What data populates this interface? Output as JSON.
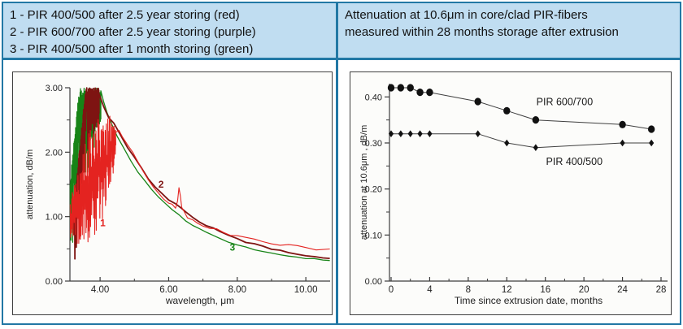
{
  "colors": {
    "frame_border": "#2278a5",
    "header_bg": "#c0ddf1",
    "panel_bg": "#fcfcfa",
    "axis": "#3c3c3c",
    "tick_text": "#222222",
    "marker": "#111111",
    "connect_line": "#3f3f3f",
    "series_red": "#e42320",
    "series_darkred": "#7e1412",
    "series_green": "#178417"
  },
  "legend_panel": {
    "lines": [
      "1 - PIR 400/500 after 2.5 year storing (red)",
      "2 - PIR 600/700 after 2.5 year storing (purple)",
      "3 - PIR 400/500 after 1 month storing (green)"
    ]
  },
  "title_panel": {
    "lines": [
      "Attenuation at 10.6μm in core/clad PIR-fibers",
      "measured within 28 months storage after extrusion"
    ]
  },
  "chart_data": [
    {
      "type": "line",
      "title": "",
      "xlabel": "wavelength, μm",
      "ylabel": "attenuation, dB/m",
      "xlim": [
        3.12,
        10.75
      ],
      "ylim": [
        0,
        3.0
      ],
      "grid": false,
      "xticks_major": [
        {
          "v": 4,
          "label": "4.00"
        },
        {
          "v": 6,
          "label": "6.00"
        },
        {
          "v": 8,
          "label": "8.00"
        },
        {
          "v": 10,
          "label": "10.00"
        }
      ],
      "xticks_minor": [
        5,
        7,
        9
      ],
      "yticks_major": [
        {
          "v": 0,
          "label": "0.00"
        },
        {
          "v": 1,
          "label": "1.00"
        },
        {
          "v": 2,
          "label": "2.00"
        },
        {
          "v": 3,
          "label": "3.00"
        }
      ],
      "yticks_minor": [
        0.5,
        1.5,
        2.5
      ],
      "series": [
        {
          "name": "PIR 400/500 after 1 month storing",
          "curve_label": "3",
          "label_xy": [
            7.78,
            0.47
          ],
          "color": "#178417",
          "width": 1.3,
          "seed": 11,
          "jitter": 0.02,
          "noise": {
            "kind": "banded",
            "x0": 3.13,
            "x1": 4.02,
            "step": 0.013,
            "top0": 1.6,
            "rise": 5.5,
            "cap": 3.0,
            "fall_after": 3.96,
            "fall_rate": 1.2,
            "depth_min": 0.3,
            "depth_max": 1.55,
            "taper_x": 3.55,
            "taper_k": 1.5
          },
          "points": [
            [
              4.02,
              2.95
            ],
            [
              4.1,
              2.8
            ],
            [
              4.2,
              2.62
            ],
            [
              4.35,
              2.42
            ],
            [
              4.5,
              2.25
            ],
            [
              4.7,
              2.05
            ],
            [
              4.9,
              1.87
            ],
            [
              5.1,
              1.7
            ],
            [
              5.3,
              1.55
            ],
            [
              5.5,
              1.42
            ],
            [
              5.7,
              1.3
            ],
            [
              5.9,
              1.2
            ],
            [
              6.1,
              1.1
            ],
            [
              6.3,
              1.02
            ],
            [
              6.5,
              0.94
            ],
            [
              6.7,
              0.87
            ],
            [
              6.9,
              0.81
            ],
            [
              7.1,
              0.76
            ],
            [
              7.3,
              0.71
            ],
            [
              7.5,
              0.66
            ],
            [
              7.75,
              0.61
            ],
            [
              8.0,
              0.57
            ],
            [
              8.25,
              0.53
            ],
            [
              8.5,
              0.49
            ],
            [
              8.75,
              0.46
            ],
            [
              9.0,
              0.43
            ],
            [
              9.25,
              0.41
            ],
            [
              9.5,
              0.39
            ],
            [
              9.75,
              0.37
            ],
            [
              10.0,
              0.35
            ],
            [
              10.25,
              0.34
            ],
            [
              10.5,
              0.33
            ],
            [
              10.7,
              0.32
            ]
          ]
        },
        {
          "name": "PIR 600/700 after 2.5 year storing",
          "curve_label": "2",
          "label_xy": [
            5.7,
            1.45
          ],
          "color": "#7e1412",
          "width": 1.8,
          "seed": 23,
          "jitter": 0.03,
          "noise": {
            "kind": "banded",
            "x0": 3.22,
            "x1": 3.97,
            "step": 0.013,
            "top0": 1.1,
            "rise": 5.3,
            "cap": 3.0,
            "fall_after": 3.95,
            "fall_rate": 3.0,
            "depth_min": 0.2,
            "depth_max": 1.0,
            "taper_x": 3.65,
            "taper_k": 1.4
          },
          "points": [
            [
              3.97,
              2.92
            ],
            [
              4.1,
              2.72
            ],
            [
              4.25,
              2.55
            ],
            [
              4.4,
              2.44
            ],
            [
              4.6,
              2.26
            ],
            [
              4.8,
              2.08
            ],
            [
              5.0,
              1.92
            ],
            [
              5.2,
              1.75
            ],
            [
              5.4,
              1.6
            ],
            [
              5.6,
              1.47
            ],
            [
              5.8,
              1.36
            ],
            [
              6.0,
              1.27
            ],
            [
              6.2,
              1.2
            ],
            [
              6.35,
              1.14
            ],
            [
              6.5,
              1.07
            ],
            [
              6.7,
              0.99
            ],
            [
              6.9,
              0.93
            ],
            [
              7.1,
              0.87
            ],
            [
              7.3,
              0.82
            ],
            [
              7.5,
              0.77
            ],
            [
              7.75,
              0.71
            ],
            [
              8.0,
              0.66
            ],
            [
              8.25,
              0.61
            ],
            [
              8.5,
              0.57
            ],
            [
              8.75,
              0.53
            ],
            [
              9.0,
              0.5
            ],
            [
              9.25,
              0.47
            ],
            [
              9.5,
              0.44
            ],
            [
              9.75,
              0.42
            ],
            [
              10.0,
              0.4
            ],
            [
              10.25,
              0.38
            ],
            [
              10.5,
              0.36
            ],
            [
              10.7,
              0.35
            ]
          ]
        },
        {
          "name": "PIR 400/500 after 2.5 year storing",
          "curve_label": "1",
          "label_xy": [
            4.0,
            0.85
          ],
          "color": "#e42320",
          "width": 1.1,
          "seed": 5,
          "jitter": 0.045,
          "noise": {
            "kind": "swing",
            "x0": 3.13,
            "x1": 4.45,
            "step": 0.015,
            "c0": 0.95,
            "slope": 0.9,
            "cmax": 2.25,
            "amp_start": 0.35,
            "amp_rise": 1.0,
            "amp0": 0.9,
            "amp_hold": 4.0,
            "amp_fall": 1.1,
            "amp_min": 0.18,
            "clip_lo": 0.55,
            "clip_hi": 2.6
          },
          "points": [
            [
              4.45,
              2.3
            ],
            [
              4.55,
              2.34
            ],
            [
              4.65,
              2.24
            ],
            [
              4.8,
              2.12
            ],
            [
              4.95,
              2.0
            ],
            [
              5.1,
              1.86
            ],
            [
              5.25,
              1.72
            ],
            [
              5.4,
              1.58
            ],
            [
              5.55,
              1.46
            ],
            [
              5.7,
              1.36
            ],
            [
              5.85,
              1.28
            ],
            [
              6.0,
              1.22
            ],
            [
              6.1,
              1.18
            ],
            [
              6.2,
              1.15
            ],
            [
              6.26,
              1.25
            ],
            [
              6.3,
              1.44
            ],
            [
              6.34,
              1.34
            ],
            [
              6.38,
              1.16
            ],
            [
              6.45,
              1.06
            ],
            [
              6.55,
              1.0
            ],
            [
              6.7,
              0.95
            ],
            [
              6.85,
              0.9
            ],
            [
              7.0,
              0.87
            ],
            [
              7.2,
              0.83
            ],
            [
              7.4,
              0.79
            ],
            [
              7.6,
              0.76
            ],
            [
              7.8,
              0.73
            ],
            [
              8.0,
              0.7
            ],
            [
              8.25,
              0.67
            ],
            [
              8.5,
              0.64
            ],
            [
              8.75,
              0.61
            ],
            [
              9.0,
              0.59
            ],
            [
              9.25,
              0.57
            ],
            [
              9.5,
              0.55
            ],
            [
              9.75,
              0.53
            ],
            [
              10.0,
              0.52
            ],
            [
              10.3,
              0.5
            ],
            [
              10.7,
              0.49
            ]
          ]
        }
      ]
    },
    {
      "type": "scatter",
      "title": "",
      "xlabel": "Time since extrusion date, months",
      "ylabel": "attenuation at 10.6μm , dB/m",
      "xlim": [
        0,
        28
      ],
      "ylim": [
        0,
        0.43
      ],
      "grid": false,
      "xticks_major": [
        {
          "v": 0,
          "label": "0"
        },
        {
          "v": 4,
          "label": "4"
        },
        {
          "v": 8,
          "label": "8"
        },
        {
          "v": 12,
          "label": "12"
        },
        {
          "v": 16,
          "label": "16"
        },
        {
          "v": 20,
          "label": "20"
        },
        {
          "v": 24,
          "label": "24"
        },
        {
          "v": 28,
          "label": "28"
        }
      ],
      "xticks_minor": [
        2,
        6,
        10,
        14,
        18,
        22,
        26
      ],
      "yticks_major": [
        {
          "v": 0,
          "label": "0.00"
        },
        {
          "v": 0.1,
          "label": "0.10"
        },
        {
          "v": 0.2,
          "label": "0.20"
        },
        {
          "v": 0.3,
          "label": "0.30"
        },
        {
          "v": 0.4,
          "label": "0.40"
        }
      ],
      "yticks_minor": [
        0.05,
        0.15,
        0.25,
        0.35
      ],
      "series": [
        {
          "name": "PIR 600/700",
          "marker": "circle",
          "label_xy": [
            18,
            0.382
          ],
          "x": [
            0,
            1,
            2,
            3,
            4,
            9,
            12,
            15,
            24,
            27
          ],
          "y": [
            0.42,
            0.42,
            0.42,
            0.41,
            0.41,
            0.39,
            0.37,
            0.35,
            0.34,
            0.33
          ]
        },
        {
          "name": "PIR 400/500",
          "marker": "diamond",
          "label_xy": [
            19,
            0.252
          ],
          "x": [
            0,
            1,
            2,
            3,
            4,
            9,
            12,
            15,
            24,
            27
          ],
          "y": [
            0.32,
            0.32,
            0.32,
            0.32,
            0.32,
            0.32,
            0.3,
            0.29,
            0.3,
            0.3
          ]
        }
      ]
    }
  ]
}
